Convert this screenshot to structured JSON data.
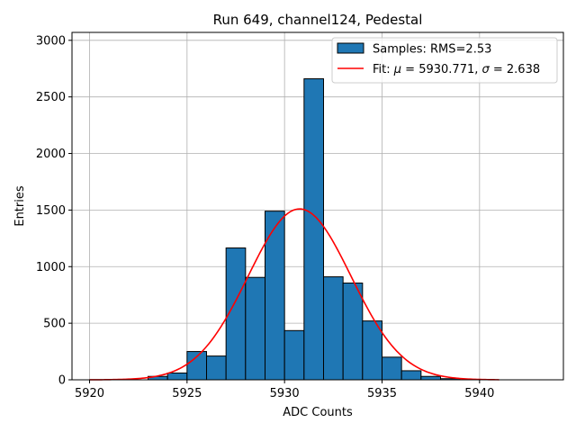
{
  "chart_data": {
    "type": "bar",
    "title": "Run 649, channel124, Pedestal",
    "xlabel": "ADC Counts",
    "ylabel": "Entries",
    "xlim": [
      5919.1,
      5944.3
    ],
    "ylim": [
      0,
      3070
    ],
    "x_ticks": [
      5920,
      5925,
      5930,
      5935,
      5940
    ],
    "y_ticks": [
      0,
      500,
      1000,
      1500,
      2000,
      2500,
      3000
    ],
    "grid": true,
    "legend_position": "top-right",
    "histogram": {
      "name": "Samples: RMS=2.53",
      "color": "#1f77b4",
      "bins": [
        {
          "x0": 5923,
          "x1": 5924,
          "value": 30
        },
        {
          "x0": 5924,
          "x1": 5925,
          "value": 60
        },
        {
          "x0": 5925,
          "x1": 5926,
          "value": 250
        },
        {
          "x0": 5926,
          "x1": 5927,
          "value": 210
        },
        {
          "x0": 5927,
          "x1": 5928,
          "value": 1165
        },
        {
          "x0": 5928,
          "x1": 5929,
          "value": 905
        },
        {
          "x0": 5929,
          "x1": 5930,
          "value": 1490
        },
        {
          "x0": 5930,
          "x1": 5931,
          "value": 435
        },
        {
          "x0": 5931,
          "x1": 5932,
          "value": 2660
        },
        {
          "x0": 5932,
          "x1": 5933,
          "value": 910
        },
        {
          "x0": 5933,
          "x1": 5934,
          "value": 855
        },
        {
          "x0": 5934,
          "x1": 5935,
          "value": 520
        },
        {
          "x0": 5935,
          "x1": 5936,
          "value": 200
        },
        {
          "x0": 5936,
          "x1": 5937,
          "value": 80
        },
        {
          "x0": 5937,
          "x1": 5938,
          "value": 30
        },
        {
          "x0": 5938,
          "x1": 5939,
          "value": 10
        }
      ]
    },
    "fit": {
      "name_prefix": "Fit: ",
      "mu_symbol": "μ",
      "mu_text": " = 5930.771, ",
      "sigma_symbol": "σ",
      "sigma_text": " = 2.638",
      "color": "#ff0000",
      "mu": 5930.771,
      "sigma": 2.638,
      "amplitude": 1510,
      "x_range": [
        5920,
        5941
      ]
    }
  }
}
